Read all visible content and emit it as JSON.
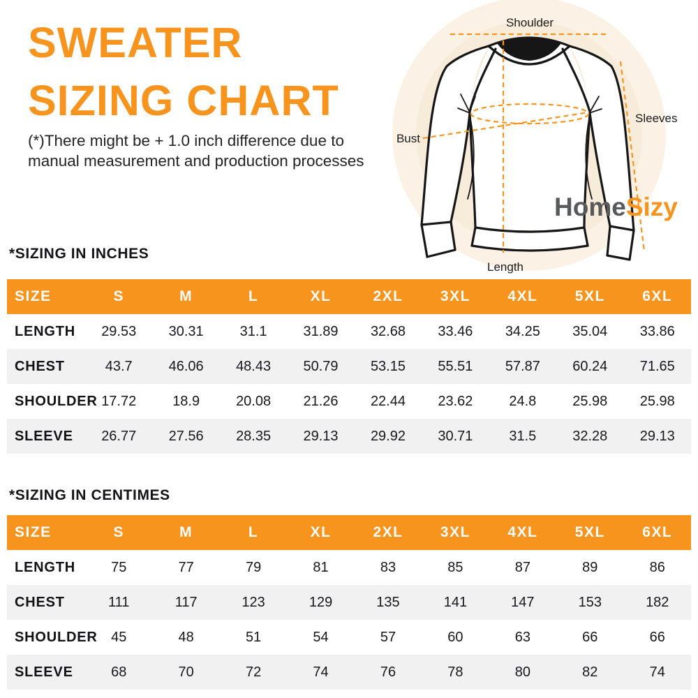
{
  "header": {
    "title_line1": "SWEATER",
    "title_line2": "SIZING CHART",
    "disclaimer_line1": "(*)There might be + 1.0 inch difference due to",
    "disclaimer_line2": "manual measurement and production processes"
  },
  "diagram": {
    "labels": {
      "shoulder": "Shoulder",
      "sleeves": "Sleeves",
      "bust": "Bust",
      "length": "Length"
    },
    "logo": {
      "part1": "Home",
      "part2": "Sizy"
    }
  },
  "colors": {
    "accent": "#F7941E",
    "row_alt": "#F1F1F2",
    "logo_gray": "#58595B",
    "circle_outer": "#FBF2E5",
    "circle_inner": "#F7ECDA"
  },
  "tables": [
    {
      "section_title": "*SIZING IN INCHES",
      "columns": [
        "SIZE",
        "S",
        "M",
        "L",
        "XL",
        "2XL",
        "3XL",
        "4XL",
        "5XL",
        "6XL"
      ],
      "rows": [
        {
          "label": "LENGTH",
          "values": [
            "29.53",
            "30.31",
            "31.1",
            "31.89",
            "32.68",
            "33.46",
            "34.25",
            "35.04",
            "33.86"
          ]
        },
        {
          "label": "CHEST",
          "values": [
            "43.7",
            "46.06",
            "48.43",
            "50.79",
            "53.15",
            "55.51",
            "57.87",
            "60.24",
            "71.65"
          ]
        },
        {
          "label": "SHOULDER",
          "values": [
            "17.72",
            "18.9",
            "20.08",
            "21.26",
            "22.44",
            "23.62",
            "24.8",
            "25.98",
            "25.98"
          ]
        },
        {
          "label": "SLEEVE",
          "values": [
            "26.77",
            "27.56",
            "28.35",
            "29.13",
            "29.92",
            "30.71",
            "31.5",
            "32.28",
            "29.13"
          ]
        }
      ]
    },
    {
      "section_title": "*SIZING IN CENTIMES",
      "columns": [
        "SIZE",
        "S",
        "M",
        "L",
        "XL",
        "2XL",
        "3XL",
        "4XL",
        "5XL",
        "6XL"
      ],
      "rows": [
        {
          "label": "LENGTH",
          "values": [
            "75",
            "77",
            "79",
            "81",
            "83",
            "85",
            "87",
            "89",
            "86"
          ]
        },
        {
          "label": "CHEST",
          "values": [
            "111",
            "117",
            "123",
            "129",
            "135",
            "141",
            "147",
            "153",
            "182"
          ]
        },
        {
          "label": "SHOULDER",
          "values": [
            "45",
            "48",
            "51",
            "54",
            "57",
            "60",
            "63",
            "66",
            "66"
          ]
        },
        {
          "label": "SLEEVE",
          "values": [
            "68",
            "70",
            "72",
            "74",
            "76",
            "78",
            "80",
            "82",
            "74"
          ]
        }
      ]
    }
  ]
}
